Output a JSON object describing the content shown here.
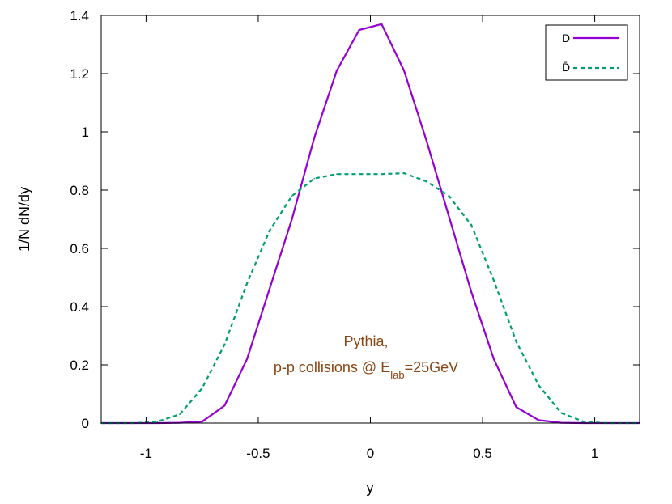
{
  "chart_data": {
    "type": "line",
    "title": "",
    "xlabel": "y",
    "ylabel": "1/N dN/dy",
    "xlim": [
      -1.2,
      1.2
    ],
    "ylim": [
      0,
      1.4
    ],
    "xticks": [
      -1,
      -0.5,
      0,
      0.5,
      1
    ],
    "xtick_labels": [
      "-1",
      "-0.5",
      "0",
      "0.5",
      "1"
    ],
    "yticks": [
      0,
      0.2,
      0.4,
      0.6,
      0.8,
      1,
      1.2,
      1.4
    ],
    "ytick_labels": [
      "0",
      "0.2",
      "0.4",
      "0.6",
      "0.8",
      "1",
      "1.2",
      "1.4"
    ],
    "grid": false,
    "legend_position": "top-right",
    "series": [
      {
        "name": "D",
        "color": "#9400d3",
        "dash": "solid",
        "x": [
          -1.2,
          -1.05,
          -0.95,
          -0.85,
          -0.75,
          -0.65,
          -0.55,
          -0.45,
          -0.35,
          -0.25,
          -0.15,
          -0.05,
          0.05,
          0.15,
          0.25,
          0.35,
          0.45,
          0.55,
          0.65,
          0.75,
          0.85,
          0.95,
          1.05,
          1.2
        ],
        "y": [
          0,
          0,
          0,
          0.001,
          0.005,
          0.06,
          0.22,
          0.46,
          0.7,
          0.98,
          1.21,
          1.35,
          1.37,
          1.21,
          0.97,
          0.71,
          0.45,
          0.22,
          0.055,
          0.01,
          0.001,
          0,
          0,
          0
        ]
      },
      {
        "name": "D̄",
        "color": "#009e73",
        "dash": "dashed",
        "x": [
          -1.2,
          -1.05,
          -0.95,
          -0.85,
          -0.75,
          -0.65,
          -0.55,
          -0.45,
          -0.35,
          -0.25,
          -0.15,
          -0.05,
          0.05,
          0.15,
          0.25,
          0.35,
          0.45,
          0.55,
          0.65,
          0.75,
          0.85,
          0.95,
          1.05,
          1.2
        ],
        "y": [
          0,
          0,
          0.005,
          0.03,
          0.12,
          0.27,
          0.48,
          0.66,
          0.78,
          0.84,
          0.855,
          0.855,
          0.855,
          0.858,
          0.83,
          0.78,
          0.68,
          0.49,
          0.28,
          0.13,
          0.035,
          0.005,
          0,
          0
        ]
      }
    ],
    "annotation": {
      "line1": "Pythia,",
      "line2_prefix": "p-p collisions @ E",
      "line2_sub": "lab",
      "line2_suffix": "=25GeV",
      "color": "#8b4513"
    },
    "legend": [
      "D",
      "D̄"
    ]
  }
}
